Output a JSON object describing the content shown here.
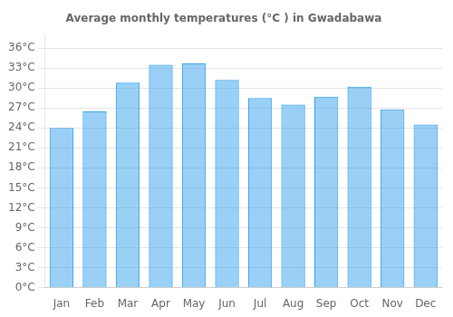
{
  "chart_data": {
    "type": "bar",
    "title": "Average monthly temperatures (°C ) in Gwadabawa",
    "categories": [
      "Jan",
      "Feb",
      "Mar",
      "Apr",
      "May",
      "Jun",
      "Jul",
      "Aug",
      "Sep",
      "Oct",
      "Nov",
      "Dec"
    ],
    "values": [
      24.0,
      26.5,
      30.8,
      33.5,
      33.7,
      31.2,
      28.5,
      27.5,
      28.7,
      30.2,
      26.8,
      24.5
    ],
    "ylim": [
      0,
      38
    ],
    "yticks": [
      {
        "value": 0,
        "label": "0°C"
      },
      {
        "value": 3,
        "label": "3°C"
      },
      {
        "value": 6,
        "label": "6°C"
      },
      {
        "value": 9,
        "label": "9°C"
      },
      {
        "value": 12,
        "label": "12°C"
      },
      {
        "value": 15,
        "label": "15°C"
      },
      {
        "value": 18,
        "label": "18°C"
      },
      {
        "value": 21,
        "label": "21°C"
      },
      {
        "value": 24,
        "label": "24°C"
      },
      {
        "value": 27,
        "label": "27°C"
      },
      {
        "value": 30,
        "label": "30°C"
      },
      {
        "value": 33,
        "label": "33°C"
      },
      {
        "value": 36,
        "label": "36°C"
      }
    ],
    "grid": true
  }
}
